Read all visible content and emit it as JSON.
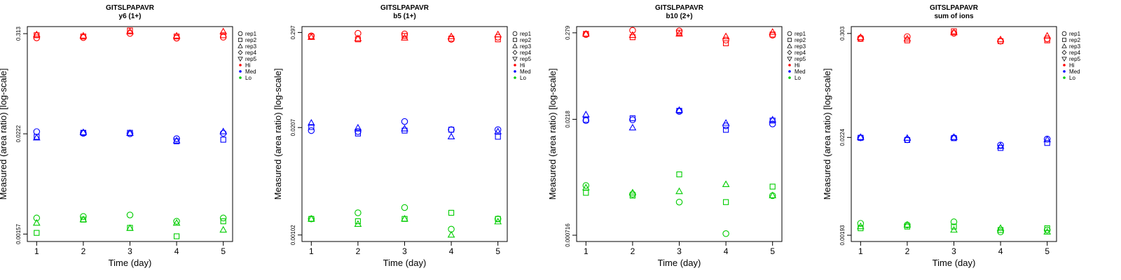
{
  "colors": {
    "Hi": "#ff0000",
    "Med": "#0000ff",
    "Lo": "#00cc00"
  },
  "legend": {
    "shapes": [
      {
        "label": "rep1",
        "shape": "circle"
      },
      {
        "label": "rep2",
        "shape": "square"
      },
      {
        "label": "rep3",
        "shape": "triangle-up"
      },
      {
        "label": "rep4",
        "shape": "diamond"
      },
      {
        "label": "rep5",
        "shape": "triangle-down"
      }
    ],
    "levels": [
      "Hi",
      "Med",
      "Lo"
    ]
  },
  "chart_data": [
    {
      "type": "scatter",
      "title": "GITSLPAPAVR",
      "subtitle": "y6 (1+)",
      "xlabel": "Time (day)",
      "ylabel": "Measured (area ratio) [log-scale]",
      "yscale": "log",
      "x": [
        1,
        2,
        3,
        4,
        5
      ],
      "yticks": [
        "0.313",
        "0.0222",
        "0.00157"
      ],
      "ylim": [
        0.00129,
        0.377
      ],
      "series": [
        {
          "level": "Hi",
          "rep": "rep1",
          "values": [
            0.28,
            0.282,
            0.315,
            0.278,
            0.285
          ]
        },
        {
          "level": "Hi",
          "rep": "rep2",
          "values": [
            0.3,
            0.29,
            0.34,
            0.29,
            0.3
          ]
        },
        {
          "level": "Hi",
          "rep": "rep3",
          "values": [
            0.305,
            0.295,
            0.33,
            0.295,
            0.33
          ]
        },
        {
          "level": "Med",
          "rep": "rep1",
          "values": [
            0.0235,
            0.0225,
            0.0222,
            0.0195,
            0.0225
          ]
        },
        {
          "level": "Med",
          "rep": "rep2",
          "values": [
            0.0205,
            0.0228,
            0.0228,
            0.0182,
            0.019
          ]
        },
        {
          "level": "Med",
          "rep": "rep3",
          "values": [
            0.02,
            0.023,
            0.0225,
            0.0185,
            0.0235
          ]
        },
        {
          "level": "Lo",
          "rep": "rep1",
          "values": [
            0.0024,
            0.0025,
            0.0026,
            0.0022,
            0.0024
          ]
        },
        {
          "level": "Lo",
          "rep": "rep2",
          "values": [
            0.00162,
            0.0023,
            0.00185,
            0.00148,
            0.0022
          ]
        },
        {
          "level": "Lo",
          "rep": "rep3",
          "values": [
            0.0021,
            0.0023,
            0.00183,
            0.0021,
            0.00175
          ]
        }
      ]
    },
    {
      "type": "scatter",
      "title": "GITSLPAPAVR",
      "subtitle": "b5 (1+)",
      "xlabel": "Time (day)",
      "ylabel": "Measured (area ratio) [log-scale]",
      "yscale": "log",
      "x": [
        1,
        2,
        3,
        4,
        5
      ],
      "yticks": [
        "0.297",
        "0.0207",
        "0.00102"
      ],
      "ylim": [
        0.00085,
        0.35
      ],
      "series": [
        {
          "level": "Hi",
          "rep": "rep1",
          "values": [
            0.27,
            0.29,
            0.285,
            0.245,
            0.26
          ]
        },
        {
          "level": "Hi",
          "rep": "rep2",
          "values": [
            0.265,
            0.245,
            0.27,
            0.25,
            0.245
          ]
        },
        {
          "level": "Hi",
          "rep": "rep3",
          "values": [
            0.26,
            0.25,
            0.255,
            0.265,
            0.28
          ]
        },
        {
          "level": "Med",
          "rep": "rep1",
          "values": [
            0.019,
            0.0185,
            0.0245,
            0.0195,
            0.0195
          ]
        },
        {
          "level": "Med",
          "rep": "rep2",
          "values": [
            0.021,
            0.0175,
            0.019,
            0.0195,
            0.016
          ]
        },
        {
          "level": "Med",
          "rep": "rep3",
          "values": [
            0.0235,
            0.0205,
            0.02,
            0.016,
            0.0185
          ]
        },
        {
          "level": "Lo",
          "rep": "rep1",
          "values": [
            0.0016,
            0.0019,
            0.0022,
            0.0012,
            0.0016
          ]
        },
        {
          "level": "Lo",
          "rep": "rep2",
          "values": [
            0.0016,
            0.0015,
            0.0016,
            0.0019,
            0.0016
          ]
        },
        {
          "level": "Lo",
          "rep": "rep3",
          "values": [
            0.0016,
            0.00138,
            0.0016,
            0.00102,
            0.00148
          ]
        }
      ]
    },
    {
      "type": "scatter",
      "title": "GITSLPAPAVR",
      "subtitle": "b10 (2+)",
      "xlabel": "Time (day)",
      "ylabel": "Measured (area ratio) [log-scale]",
      "yscale": "log",
      "x": [
        1,
        2,
        3,
        4,
        5
      ],
      "yticks": [
        "0.279",
        "0.0218",
        "0.000716"
      ],
      "ylim": [
        0.000595,
        0.335
      ],
      "series": [
        {
          "level": "Hi",
          "rep": "rep1",
          "values": [
            0.265,
            0.3,
            0.295,
            0.225,
            0.26
          ]
        },
        {
          "level": "Hi",
          "rep": "rep2",
          "values": [
            0.27,
            0.245,
            0.28,
            0.205,
            0.265
          ]
        },
        {
          "level": "Hi",
          "rep": "rep3",
          "values": [
            0.27,
            0.26,
            0.27,
            0.25,
            0.285
          ]
        },
        {
          "level": "Med",
          "rep": "rep1",
          "values": [
            0.021,
            0.0215,
            0.0275,
            0.018,
            0.019
          ]
        },
        {
          "level": "Med",
          "rep": "rep2",
          "values": [
            0.0215,
            0.0225,
            0.028,
            0.016,
            0.021
          ]
        },
        {
          "level": "Med",
          "rep": "rep3",
          "values": [
            0.025,
            0.017,
            0.0285,
            0.0195,
            0.0215
          ]
        },
        {
          "level": "Lo",
          "rep": "rep1",
          "values": [
            0.0031,
            0.0024,
            0.0019,
            0.00075,
            0.0023
          ]
        },
        {
          "level": "Lo",
          "rep": "rep2",
          "values": [
            0.0025,
            0.0023,
            0.0043,
            0.0019,
            0.003
          ]
        },
        {
          "level": "Lo",
          "rep": "rep3",
          "values": [
            0.0029,
            0.0025,
            0.0026,
            0.0032,
            0.0023
          ]
        }
      ]
    },
    {
      "type": "scatter",
      "title": "GITSLPAPAVR",
      "subtitle": "sum of ions",
      "xlabel": "Time (day)",
      "ylabel": "Measured (area ratio) [log-scale]",
      "yscale": "log",
      "x": [
        1,
        2,
        3,
        4,
        5
      ],
      "yticks": [
        "0.303",
        "0.0224",
        "0.00193"
      ],
      "ylim": [
        0.00165,
        0.36
      ],
      "series": [
        {
          "level": "Hi",
          "rep": "rep1",
          "values": [
            0.27,
            0.28,
            0.305,
            0.25,
            0.265
          ]
        },
        {
          "level": "Hi",
          "rep": "rep2",
          "values": [
            0.265,
            0.255,
            0.32,
            0.25,
            0.255
          ]
        },
        {
          "level": "Hi",
          "rep": "rep3",
          "values": [
            0.275,
            0.265,
            0.31,
            0.26,
            0.285
          ]
        },
        {
          "level": "Med",
          "rep": "rep1",
          "values": [
            0.0222,
            0.0212,
            0.0222,
            0.0185,
            0.0215
          ]
        },
        {
          "level": "Med",
          "rep": "rep2",
          "values": [
            0.0222,
            0.021,
            0.022,
            0.0172,
            0.0195
          ]
        },
        {
          "level": "Med",
          "rep": "rep3",
          "values": [
            0.0225,
            0.022,
            0.0225,
            0.018,
            0.0212
          ]
        },
        {
          "level": "Lo",
          "rep": "rep1",
          "values": [
            0.0026,
            0.0025,
            0.0027,
            0.0021,
            0.0022
          ]
        },
        {
          "level": "Lo",
          "rep": "rep2",
          "values": [
            0.0023,
            0.0024,
            0.0024,
            0.0022,
            0.0023
          ]
        },
        {
          "level": "Lo",
          "rep": "rep3",
          "values": [
            0.0024,
            0.0025,
            0.0022,
            0.0023,
            0.0021
          ]
        }
      ]
    }
  ]
}
